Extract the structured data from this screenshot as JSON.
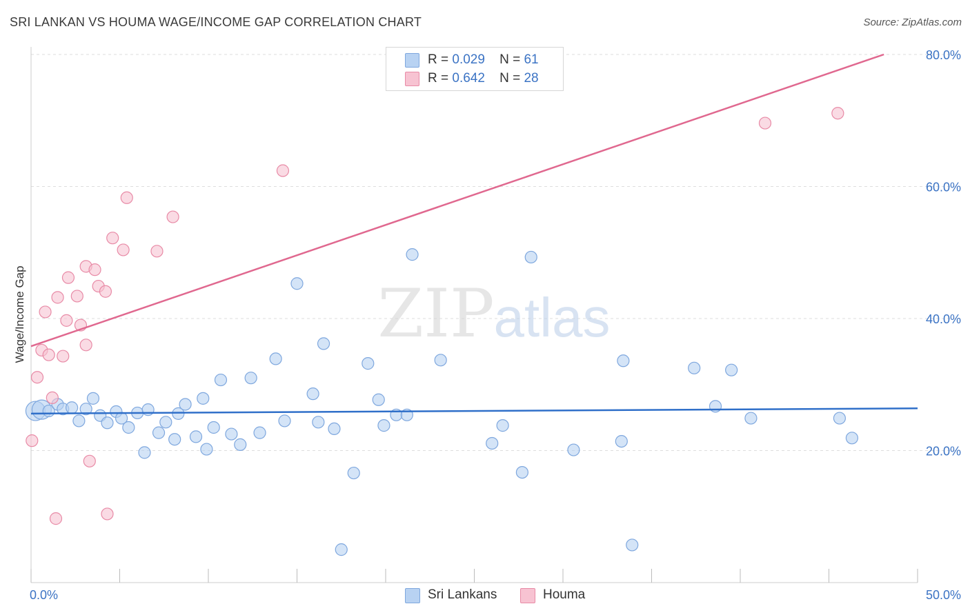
{
  "header": {
    "title": "SRI LANKAN VS HOUMA WAGE/INCOME GAP CORRELATION CHART",
    "source": "Source: ZipAtlas.com"
  },
  "legend_top": {
    "rows": [
      {
        "r_label": "R =",
        "r_value": "0.029",
        "n_label": "N =",
        "n_value": "61"
      },
      {
        "r_label": "R =",
        "r_value": "0.642",
        "n_label": "N =",
        "n_value": "28"
      }
    ]
  },
  "legend_bottom": {
    "items": [
      {
        "label": "Sri Lankans"
      },
      {
        "label": "Houma"
      }
    ]
  },
  "watermark": {
    "zip": "ZIP",
    "atlas": "atlas"
  },
  "colors": {
    "blue_fill": "#b8d2f2",
    "blue_stroke": "#7ea7de",
    "blue_line": "#2f6fc9",
    "pink_fill": "#f7c3d2",
    "pink_stroke": "#e88aa6",
    "pink_line": "#e0688f",
    "tick_label": "#3b73c4",
    "grid": "#dddddd"
  },
  "chart_data": {
    "type": "scatter",
    "title": "SRI LANKAN VS HOUMA WAGE/INCOME GAP CORRELATION CHART",
    "xlabel": "",
    "ylabel": "Wage/Income Gap",
    "xlim": [
      0,
      50
    ],
    "ylim": [
      0,
      80
    ],
    "x_tick_labels": [
      {
        "value": 0,
        "label": "0.0%"
      },
      {
        "value": 50,
        "label": "50.0%"
      }
    ],
    "x_minor_ticks": [
      0,
      5,
      10,
      15,
      20,
      25,
      30,
      35,
      40,
      45,
      50
    ],
    "y_ticks": [
      {
        "value": 20,
        "label": "20.0%"
      },
      {
        "value": 40,
        "label": "40.0%"
      },
      {
        "value": 60,
        "label": "60.0%"
      },
      {
        "value": 80,
        "label": "80.0%"
      }
    ],
    "grid": "horizontal dashed",
    "series": [
      {
        "name": "Sri Lankans",
        "color": "#b8d2f2",
        "trend": {
          "x": [
            0,
            50
          ],
          "y": [
            25.6,
            26.4
          ]
        },
        "points": [
          {
            "x": 0.25,
            "y": 26.0,
            "big": true
          },
          {
            "x": 0.6,
            "y": 26.2,
            "big": true
          },
          {
            "x": 1.0,
            "y": 26.0
          },
          {
            "x": 1.5,
            "y": 27.0
          },
          {
            "x": 1.8,
            "y": 26.3
          },
          {
            "x": 2.3,
            "y": 26.5
          },
          {
            "x": 2.7,
            "y": 24.5
          },
          {
            "x": 3.1,
            "y": 26.3
          },
          {
            "x": 3.5,
            "y": 27.9
          },
          {
            "x": 3.9,
            "y": 25.3
          },
          {
            "x": 4.3,
            "y": 24.2
          },
          {
            "x": 4.8,
            "y": 25.9
          },
          {
            "x": 5.1,
            "y": 24.9
          },
          {
            "x": 5.5,
            "y": 23.5
          },
          {
            "x": 6.0,
            "y": 25.7
          },
          {
            "x": 6.4,
            "y": 19.7
          },
          {
            "x": 6.6,
            "y": 26.2
          },
          {
            "x": 7.2,
            "y": 22.7
          },
          {
            "x": 7.6,
            "y": 24.3
          },
          {
            "x": 8.1,
            "y": 21.7
          },
          {
            "x": 8.3,
            "y": 25.6
          },
          {
            "x": 8.7,
            "y": 27.0
          },
          {
            "x": 9.3,
            "y": 22.1
          },
          {
            "x": 9.7,
            "y": 27.9
          },
          {
            "x": 9.9,
            "y": 20.2
          },
          {
            "x": 10.3,
            "y": 23.5
          },
          {
            "x": 10.7,
            "y": 30.7
          },
          {
            "x": 11.3,
            "y": 22.5
          },
          {
            "x": 11.8,
            "y": 20.9
          },
          {
            "x": 12.4,
            "y": 31.0
          },
          {
            "x": 12.9,
            "y": 22.7
          },
          {
            "x": 13.8,
            "y": 33.9
          },
          {
            "x": 14.3,
            "y": 24.5
          },
          {
            "x": 15.0,
            "y": 45.3
          },
          {
            "x": 15.9,
            "y": 28.6
          },
          {
            "x": 16.2,
            "y": 24.3
          },
          {
            "x": 16.5,
            "y": 36.2
          },
          {
            "x": 17.1,
            "y": 23.3
          },
          {
            "x": 17.5,
            "y": 5.0
          },
          {
            "x": 18.2,
            "y": 16.6
          },
          {
            "x": 19.0,
            "y": 33.2
          },
          {
            "x": 19.6,
            "y": 27.7
          },
          {
            "x": 19.9,
            "y": 23.8
          },
          {
            "x": 20.6,
            "y": 25.4
          },
          {
            "x": 21.2,
            "y": 25.4
          },
          {
            "x": 21.5,
            "y": 49.7
          },
          {
            "x": 23.1,
            "y": 33.7
          },
          {
            "x": 26.0,
            "y": 21.1
          },
          {
            "x": 26.6,
            "y": 23.8
          },
          {
            "x": 27.7,
            "y": 16.7
          },
          {
            "x": 28.2,
            "y": 49.3
          },
          {
            "x": 30.6,
            "y": 20.1
          },
          {
            "x": 33.3,
            "y": 21.4
          },
          {
            "x": 33.4,
            "y": 33.6
          },
          {
            "x": 33.9,
            "y": 5.7
          },
          {
            "x": 37.4,
            "y": 32.5
          },
          {
            "x": 38.6,
            "y": 26.7
          },
          {
            "x": 39.5,
            "y": 32.2
          },
          {
            "x": 40.6,
            "y": 24.9
          },
          {
            "x": 45.6,
            "y": 24.9
          },
          {
            "x": 46.3,
            "y": 21.9
          }
        ]
      },
      {
        "name": "Houma",
        "color": "#f7c3d2",
        "trend": {
          "x": [
            0,
            48.1
          ],
          "y": [
            35.8,
            80.0
          ]
        },
        "points": [
          {
            "x": 0.05,
            "y": 21.5
          },
          {
            "x": 0.35,
            "y": 31.1
          },
          {
            "x": 0.6,
            "y": 35.2
          },
          {
            "x": 0.8,
            "y": 41.0
          },
          {
            "x": 1.0,
            "y": 34.5
          },
          {
            "x": 1.2,
            "y": 28.0
          },
          {
            "x": 1.5,
            "y": 43.2
          },
          {
            "x": 1.8,
            "y": 34.3
          },
          {
            "x": 2.0,
            "y": 39.7
          },
          {
            "x": 2.1,
            "y": 46.2
          },
          {
            "x": 2.6,
            "y": 43.4
          },
          {
            "x": 2.8,
            "y": 39.0
          },
          {
            "x": 3.1,
            "y": 47.9
          },
          {
            "x": 3.1,
            "y": 36.0
          },
          {
            "x": 3.3,
            "y": 18.4
          },
          {
            "x": 3.6,
            "y": 47.4
          },
          {
            "x": 3.8,
            "y": 44.9
          },
          {
            "x": 4.2,
            "y": 44.1
          },
          {
            "x": 4.3,
            "y": 10.4
          },
          {
            "x": 4.6,
            "y": 52.2
          },
          {
            "x": 5.2,
            "y": 50.4
          },
          {
            "x": 5.4,
            "y": 58.3
          },
          {
            "x": 7.1,
            "y": 50.2
          },
          {
            "x": 8.0,
            "y": 55.4
          },
          {
            "x": 14.2,
            "y": 62.4
          },
          {
            "x": 1.4,
            "y": 9.7
          },
          {
            "x": 41.4,
            "y": 69.6
          },
          {
            "x": 45.5,
            "y": 71.1
          }
        ]
      }
    ]
  }
}
